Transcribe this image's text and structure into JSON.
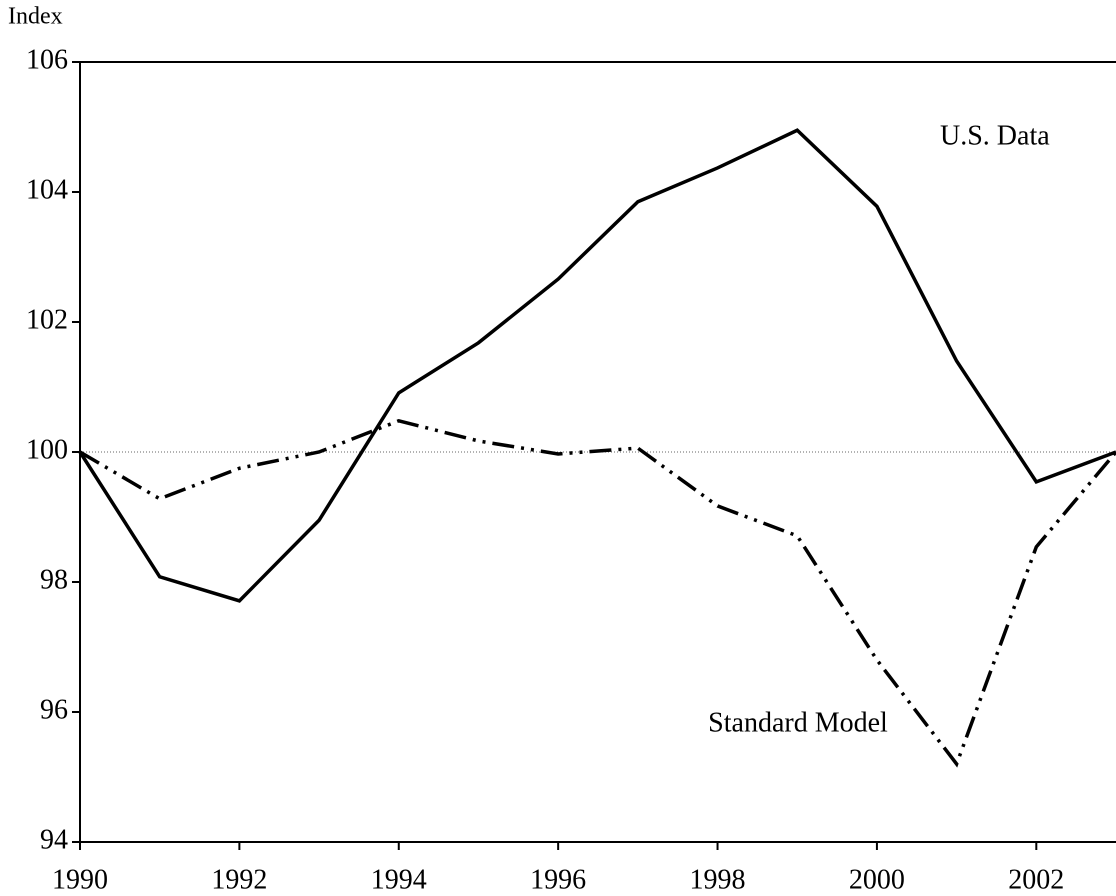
{
  "chart_data": {
    "type": "line",
    "y_label": "Index",
    "x": [
      1990,
      1991,
      1992,
      1993,
      1994,
      1995,
      1996,
      1997,
      1998,
      1999,
      2000,
      2001,
      2002,
      2003
    ],
    "series": [
      {
        "name": "U.S. Data",
        "color": "#000000",
        "linestyle": "solid",
        "values": [
          100,
          98.08,
          97.71,
          98.95,
          100.91,
          101.68,
          102.66,
          103.85,
          104.37,
          104.95,
          103.78,
          101.4,
          99.54,
          100
        ]
      },
      {
        "name": "Standard Model",
        "color": "#000000",
        "linestyle": "dashdotdot",
        "values": [
          100,
          99.28,
          99.75,
          100,
          100.48,
          100.17,
          99.97,
          100.06,
          99.17,
          98.71,
          96.8,
          95.2,
          98.54,
          100
        ]
      }
    ],
    "xlim": [
      1990,
      2003
    ],
    "xticks": [
      1990,
      1992,
      1994,
      1996,
      1998,
      2000,
      2002
    ],
    "ylim": [
      94,
      106
    ],
    "yticks": [
      94,
      96,
      98,
      100,
      102,
      104,
      106
    ],
    "reference_line": 100
  }
}
